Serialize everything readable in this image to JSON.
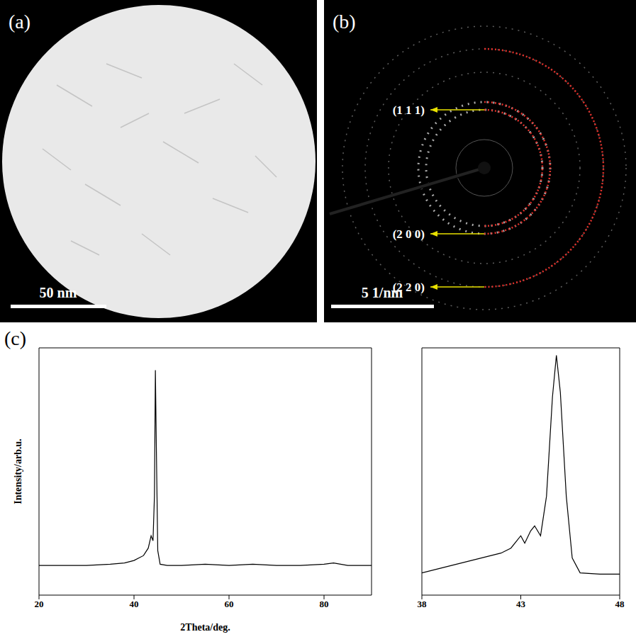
{
  "panels": [
    {
      "letter": "(a)",
      "scale_bar": "50 nm"
    },
    {
      "letter": "(b)",
      "scale_bar": "5 1/nm",
      "rings": [
        "(1 1 1)",
        "(2 0 0)",
        "(2 2 0)"
      ]
    }
  ],
  "chart_letter": "(c)",
  "chart_data": [
    {
      "type": "line",
      "x_label": "2Theta/deg.",
      "y_label": "Intensity/arb.u.",
      "xlim": [
        20,
        90
      ],
      "xticks": [
        20,
        40,
        60,
        80
      ],
      "ylim": [
        0,
        100
      ],
      "tick_labels": "x",
      "color": "#000000",
      "x": [
        20,
        25,
        30,
        35,
        38,
        40,
        42,
        43,
        43.6,
        44,
        44.3,
        44.5,
        44.7,
        45,
        45.5,
        47,
        50,
        55,
        60,
        65,
        70,
        75,
        80,
        82,
        85,
        90
      ],
      "values": [
        12,
        12,
        12,
        12.5,
        13,
        14,
        16,
        19,
        24,
        22,
        40,
        91,
        60,
        18,
        12.5,
        12,
        12,
        12.5,
        12,
        12.5,
        12,
        12,
        12.5,
        13,
        12,
        12
      ]
    },
    {
      "type": "line",
      "xlim": [
        38,
        48
      ],
      "xticks": [
        38,
        43,
        48
      ],
      "ylim": [
        0,
        100
      ],
      "tick_labels": "x",
      "color": "#000000",
      "x": [
        38,
        39,
        40,
        41,
        42,
        42.5,
        43,
        43.2,
        43.5,
        43.7,
        44,
        44.3,
        44.6,
        44.8,
        45,
        45.3,
        45.6,
        46,
        47,
        48
      ],
      "values": [
        9,
        11,
        13,
        15,
        17,
        19,
        24,
        21,
        26,
        28,
        24,
        40,
        80,
        97,
        82,
        40,
        15,
        9,
        8.5,
        8.5
      ]
    }
  ]
}
